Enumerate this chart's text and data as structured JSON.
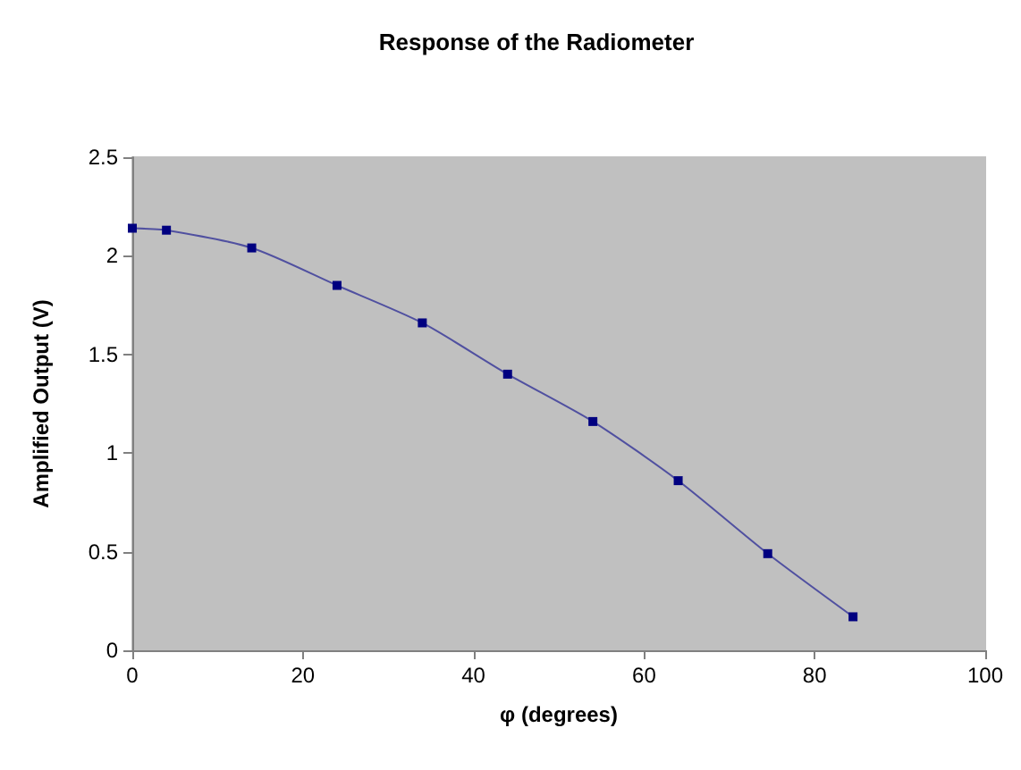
{
  "chart_data": {
    "type": "line",
    "title": "Response of the Radiometer",
    "xlabel": "φ (degrees)",
    "ylabel": "Amplified Output (V)",
    "x": [
      0,
      4,
      14,
      24,
      34,
      44,
      54,
      64,
      74.5,
      84.5
    ],
    "series": [
      {
        "color": "#000080",
        "values": [
          2.14,
          2.13,
          2.04,
          1.85,
          1.66,
          1.4,
          1.16,
          0.86,
          0.49,
          0.17
        ]
      }
    ],
    "xlim": [
      0,
      100
    ],
    "xticks": [
      0,
      20,
      40,
      60,
      80,
      100
    ],
    "ylim": [
      0,
      2.5
    ],
    "yticks": [
      0,
      0.5,
      1,
      1.5,
      2,
      2.5
    ],
    "grid": false,
    "marker": "square",
    "line_style": "solid"
  }
}
